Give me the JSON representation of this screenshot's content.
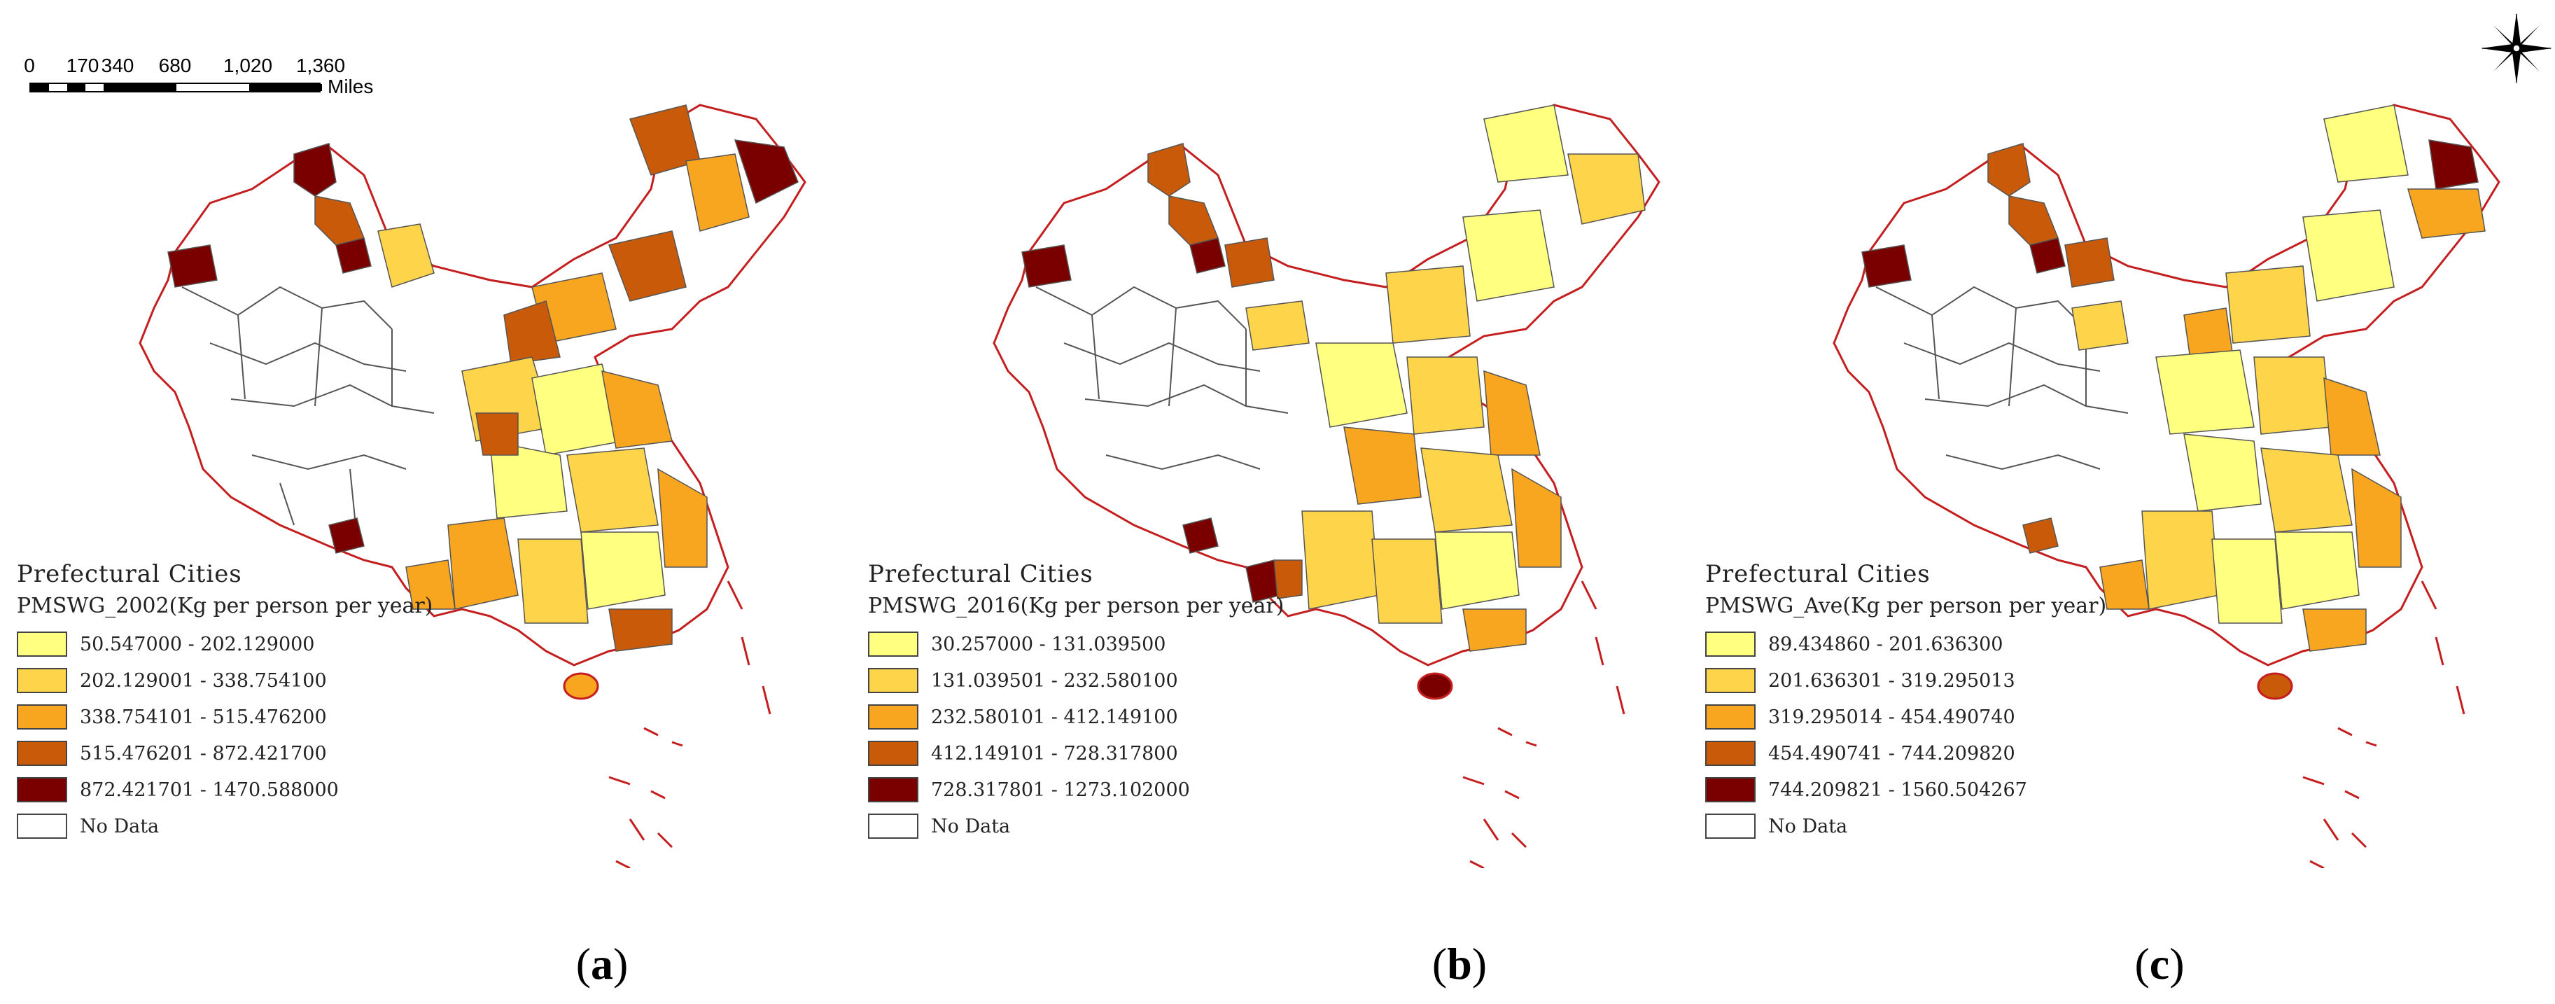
{
  "scale_bar": {
    "ticks": [
      "0",
      "170",
      "340",
      "680",
      "1,020",
      "1,360"
    ],
    "unit": "Miles"
  },
  "compass": {
    "icon": "north-arrow-compass-rose"
  },
  "colors": {
    "class1": "#ffff80",
    "class2": "#fdd44a",
    "class3": "#f8a51f",
    "class4": "#c85a0a",
    "class5": "#7a0000",
    "no_data": "#ffffff",
    "boundary": "#c41e1e"
  },
  "panels": [
    {
      "id": "a",
      "caption_open": "(",
      "caption_letter": "a",
      "caption_close": ")",
      "legend_title": "Prefectural Cities",
      "legend_field": "PMSWG_2002(Kg per person per year)",
      "classes": [
        "50.547000 - 202.129000",
        "202.129001 - 338.754100",
        "338.754101 - 515.476200",
        "515.476201 - 872.421700",
        "872.421701 - 1470.588000"
      ],
      "no_data_label": "No Data"
    },
    {
      "id": "b",
      "caption_open": "(",
      "caption_letter": "b",
      "caption_close": ")",
      "legend_title": "Prefectural Cities",
      "legend_field": "PMSWG_2016(Kg per person per year)",
      "classes": [
        "30.257000 - 131.039500",
        "131.039501 - 232.580100",
        "232.580101 - 412.149100",
        "412.149101 - 728.317800",
        "728.317801 - 1273.102000"
      ],
      "no_data_label": "No Data"
    },
    {
      "id": "c",
      "caption_open": "(",
      "caption_letter": "c",
      "caption_close": ")",
      "legend_title": "Prefectural Cities",
      "legend_field": "PMSWG_Ave(Kg per person per year)",
      "classes": [
        "89.434860 - 201.636300",
        "201.636301 - 319.295013",
        "319.295014 - 454.490740",
        "454.490741 - 744.209820",
        "744.209821 - 1560.504267"
      ],
      "no_data_label": "No Data"
    }
  ]
}
